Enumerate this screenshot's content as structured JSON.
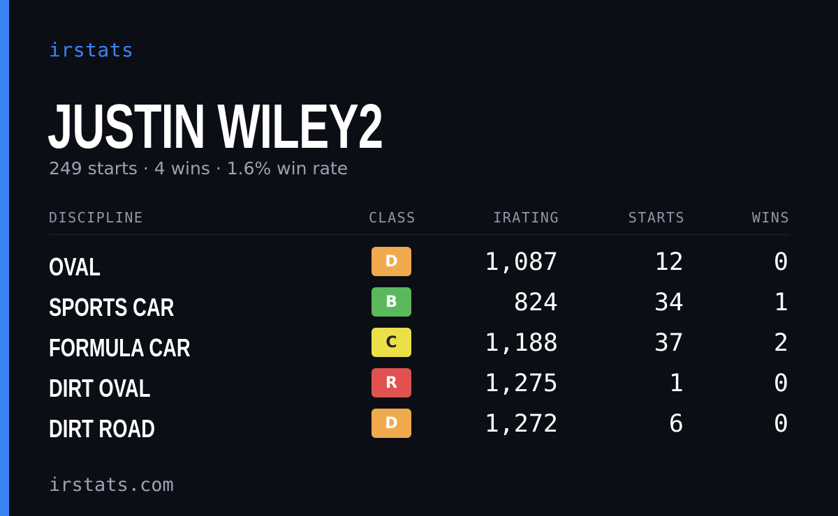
{
  "brand": "irstats",
  "player": {
    "name": "JUSTIN WILEY2",
    "summary": "249 starts · 4 wins · 1.6% win rate"
  },
  "table": {
    "headers": {
      "discipline": "DISCIPLINE",
      "class": "CLASS",
      "irating": "IRATING",
      "starts": "STARTS",
      "wins": "WINS"
    },
    "rows": [
      {
        "discipline": "OVAL",
        "class": "D",
        "irating": "1,087",
        "starts": "12",
        "wins": "0"
      },
      {
        "discipline": "SPORTS CAR",
        "class": "B",
        "irating": "824",
        "starts": "34",
        "wins": "1"
      },
      {
        "discipline": "FORMULA CAR",
        "class": "C",
        "irating": "1,188",
        "starts": "37",
        "wins": "2"
      },
      {
        "discipline": "DIRT OVAL",
        "class": "R",
        "irating": "1,275",
        "starts": "1",
        "wins": "0"
      },
      {
        "discipline": "DIRT ROAD",
        "class": "D",
        "irating": "1,272",
        "starts": "6",
        "wins": "0"
      }
    ]
  },
  "colors": {
    "accent": "#3b82f6",
    "class_D": "#f0aa4e",
    "class_B": "#5cb85c",
    "class_C": "#ebe04a",
    "class_R": "#e0524f"
  },
  "footer": "irstats.com"
}
